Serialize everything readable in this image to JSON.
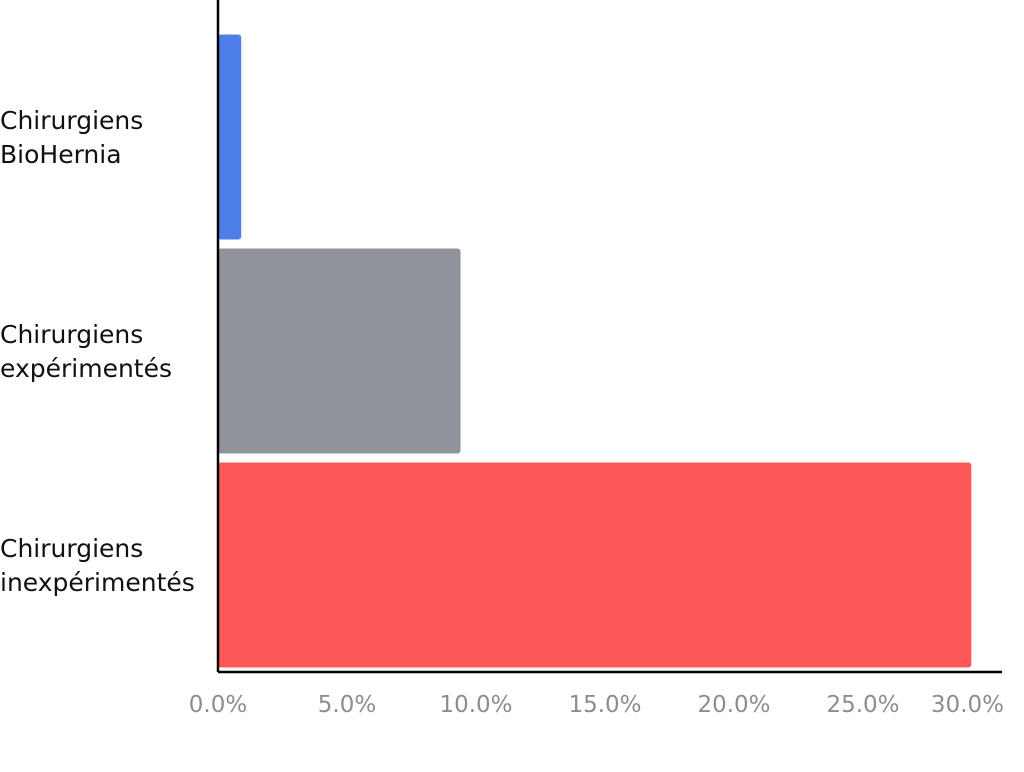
{
  "chart_data": {
    "type": "bar",
    "orientation": "horizontal",
    "title": "",
    "xlabel": "",
    "ylabel": "",
    "categories": [
      [
        "Chirurgiens",
        "BioHernia"
      ],
      [
        "Chirurgiens",
        "expérimentés"
      ],
      [
        "Chirurgiens",
        "inexpérimentés"
      ]
    ],
    "values": [
      0.9,
      9.4,
      29.2
    ],
    "colors": [
      "#4e7fe9",
      "#909399",
      "#fd5858"
    ],
    "xlim": [
      0,
      30
    ],
    "xticks": [
      0,
      5,
      10,
      15,
      20,
      25,
      30
    ],
    "xtick_labels": [
      "0.0%",
      "5.0%",
      "10.0%",
      "15.0%",
      "20.0%",
      "25.0%",
      "30.0%"
    ],
    "grid": false,
    "legend": "none"
  }
}
